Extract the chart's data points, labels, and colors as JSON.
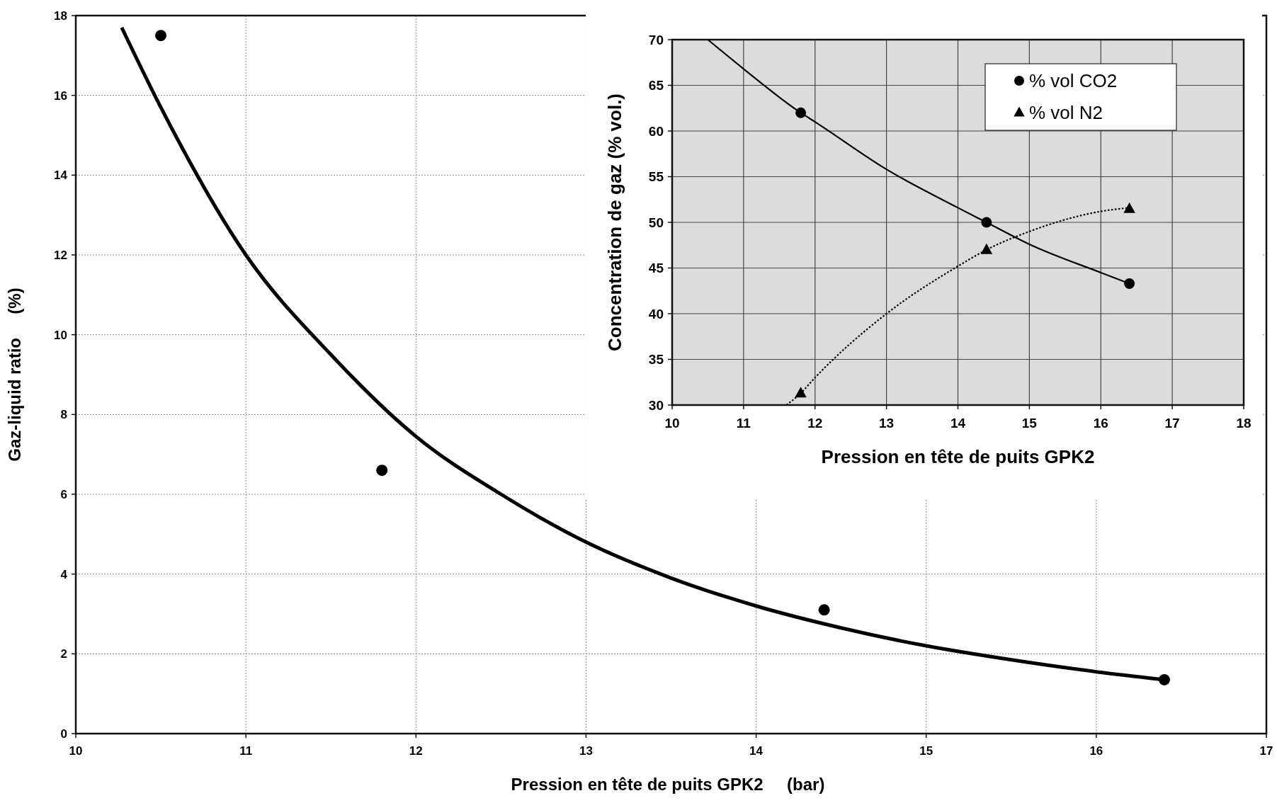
{
  "chart_data": [
    {
      "type": "scatter",
      "xlabel": "Pression en tête de puits GPK2     (bar)",
      "ylabel": "Gaz-liquid ratio     (%)",
      "xlim": [
        10,
        17
      ],
      "ylim": [
        0,
        18
      ],
      "xticks": [
        10,
        11,
        12,
        13,
        14,
        15,
        16,
        17
      ],
      "yticks": [
        0,
        2,
        4,
        6,
        8,
        10,
        12,
        14,
        16,
        18
      ],
      "grid": true,
      "legend": false,
      "series": [
        {
          "type": "scatter",
          "color": "#000000",
          "marker": "circle",
          "x": [
            10.5,
            11.8,
            14.4,
            16.4
          ],
          "values": [
            17.5,
            6.6,
            3.1,
            1.35
          ]
        },
        {
          "type": "line",
          "color": "#000000",
          "line_style": "solid",
          "x": [
            10.27,
            10.5,
            11,
            11.5,
            12,
            12.5,
            13,
            13.5,
            14,
            14.5,
            15,
            15.5,
            16,
            16.4
          ],
          "values": [
            17.7,
            15.7,
            12,
            9.5,
            7.45,
            6.0,
            4.8,
            3.9,
            3.2,
            2.65,
            2.2,
            1.85,
            1.55,
            1.35
          ]
        }
      ]
    },
    {
      "type": "scatter",
      "xlabel": "Pression en tête de puits GPK2",
      "ylabel": "Concentration de gaz (% vol.)",
      "xlim": [
        10,
        18
      ],
      "ylim": [
        30,
        70
      ],
      "xticks": [
        10,
        11,
        12,
        13,
        14,
        15,
        16,
        17,
        18
      ],
      "yticks": [
        30,
        35,
        40,
        45,
        50,
        55,
        60,
        65,
        70
      ],
      "grid": true,
      "legend": "top right",
      "series": [
        {
          "type": "scatter",
          "name": "% vol CO2",
          "color": "#000000",
          "marker": "circle",
          "x": [
            11.8,
            14.4,
            16.4
          ],
          "values": [
            62,
            50,
            43.3
          ]
        },
        {
          "type": "scatter",
          "name": "% vol N2",
          "color": "#000000",
          "marker": "triangle",
          "x": [
            11.8,
            14.4,
            16.4
          ],
          "values": [
            31.3,
            47,
            51.5
          ]
        },
        {
          "type": "line",
          "color": "#000000",
          "line_style": "solid",
          "x": [
            10.5,
            11,
            11.8,
            12,
            13,
            14,
            14.4,
            15,
            16,
            16.4
          ],
          "values": [
            70,
            66.8,
            62,
            61,
            55.8,
            51.6,
            50,
            47.6,
            44.5,
            43.3
          ]
        },
        {
          "type": "line",
          "color": "#000000",
          "line_style": "dotted",
          "x": [
            11.6,
            11.8,
            12,
            13,
            14,
            14.4,
            15,
            16,
            16.4
          ],
          "values": [
            30,
            31.3,
            33,
            40,
            45.2,
            47,
            49,
            51.2,
            51.6
          ]
        }
      ]
    }
  ]
}
